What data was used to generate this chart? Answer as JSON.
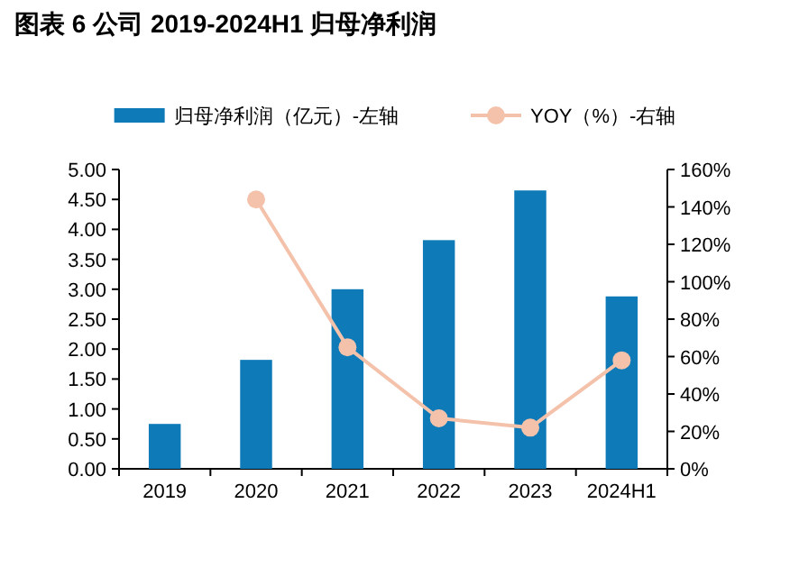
{
  "chart_data": {
    "type": "bar",
    "title": "图表 6  公司 2019-2024H1 归母净利润",
    "categories": [
      "2019",
      "2020",
      "2021",
      "2022",
      "2023",
      "2024H1"
    ],
    "series": [
      {
        "name": "归母净利润（亿元）-左轴",
        "color": "#0e7bb8",
        "values": [
          0.75,
          1.82,
          3.0,
          3.82,
          4.65,
          2.88
        ]
      },
      {
        "name": "YOY（%）-右轴",
        "type": "line",
        "axis": "y2",
        "color": "#f4c2aa",
        "marker": "circle",
        "values": [
          null,
          144,
          65,
          27,
          22,
          58
        ]
      }
    ],
    "ylim": [
      0,
      5
    ],
    "yticks": [
      {
        "value": 0,
        "label": "0.00"
      },
      {
        "value": 0.5,
        "label": "0.50"
      },
      {
        "value": 1,
        "label": "1.00"
      },
      {
        "value": 1.5,
        "label": "1.50"
      },
      {
        "value": 2,
        "label": "2.00"
      },
      {
        "value": 2.5,
        "label": "2.50"
      },
      {
        "value": 3,
        "label": "3.00"
      },
      {
        "value": 3.5,
        "label": "3.50"
      },
      {
        "value": 4,
        "label": "4.00"
      },
      {
        "value": 4.5,
        "label": "4.50"
      },
      {
        "value": 5,
        "label": "5.00"
      }
    ],
    "y2lim": [
      0,
      160
    ],
    "y2ticks": [
      {
        "value": 0,
        "label": "0%"
      },
      {
        "value": 20,
        "label": "20%"
      },
      {
        "value": 40,
        "label": "40%"
      },
      {
        "value": 60,
        "label": "60%"
      },
      {
        "value": 80,
        "label": "80%"
      },
      {
        "value": 100,
        "label": "100%"
      },
      {
        "value": 120,
        "label": "120%"
      },
      {
        "value": 140,
        "label": "140%"
      },
      {
        "value": 160,
        "label": "160%"
      }
    ],
    "legend": "top",
    "grid": false
  }
}
